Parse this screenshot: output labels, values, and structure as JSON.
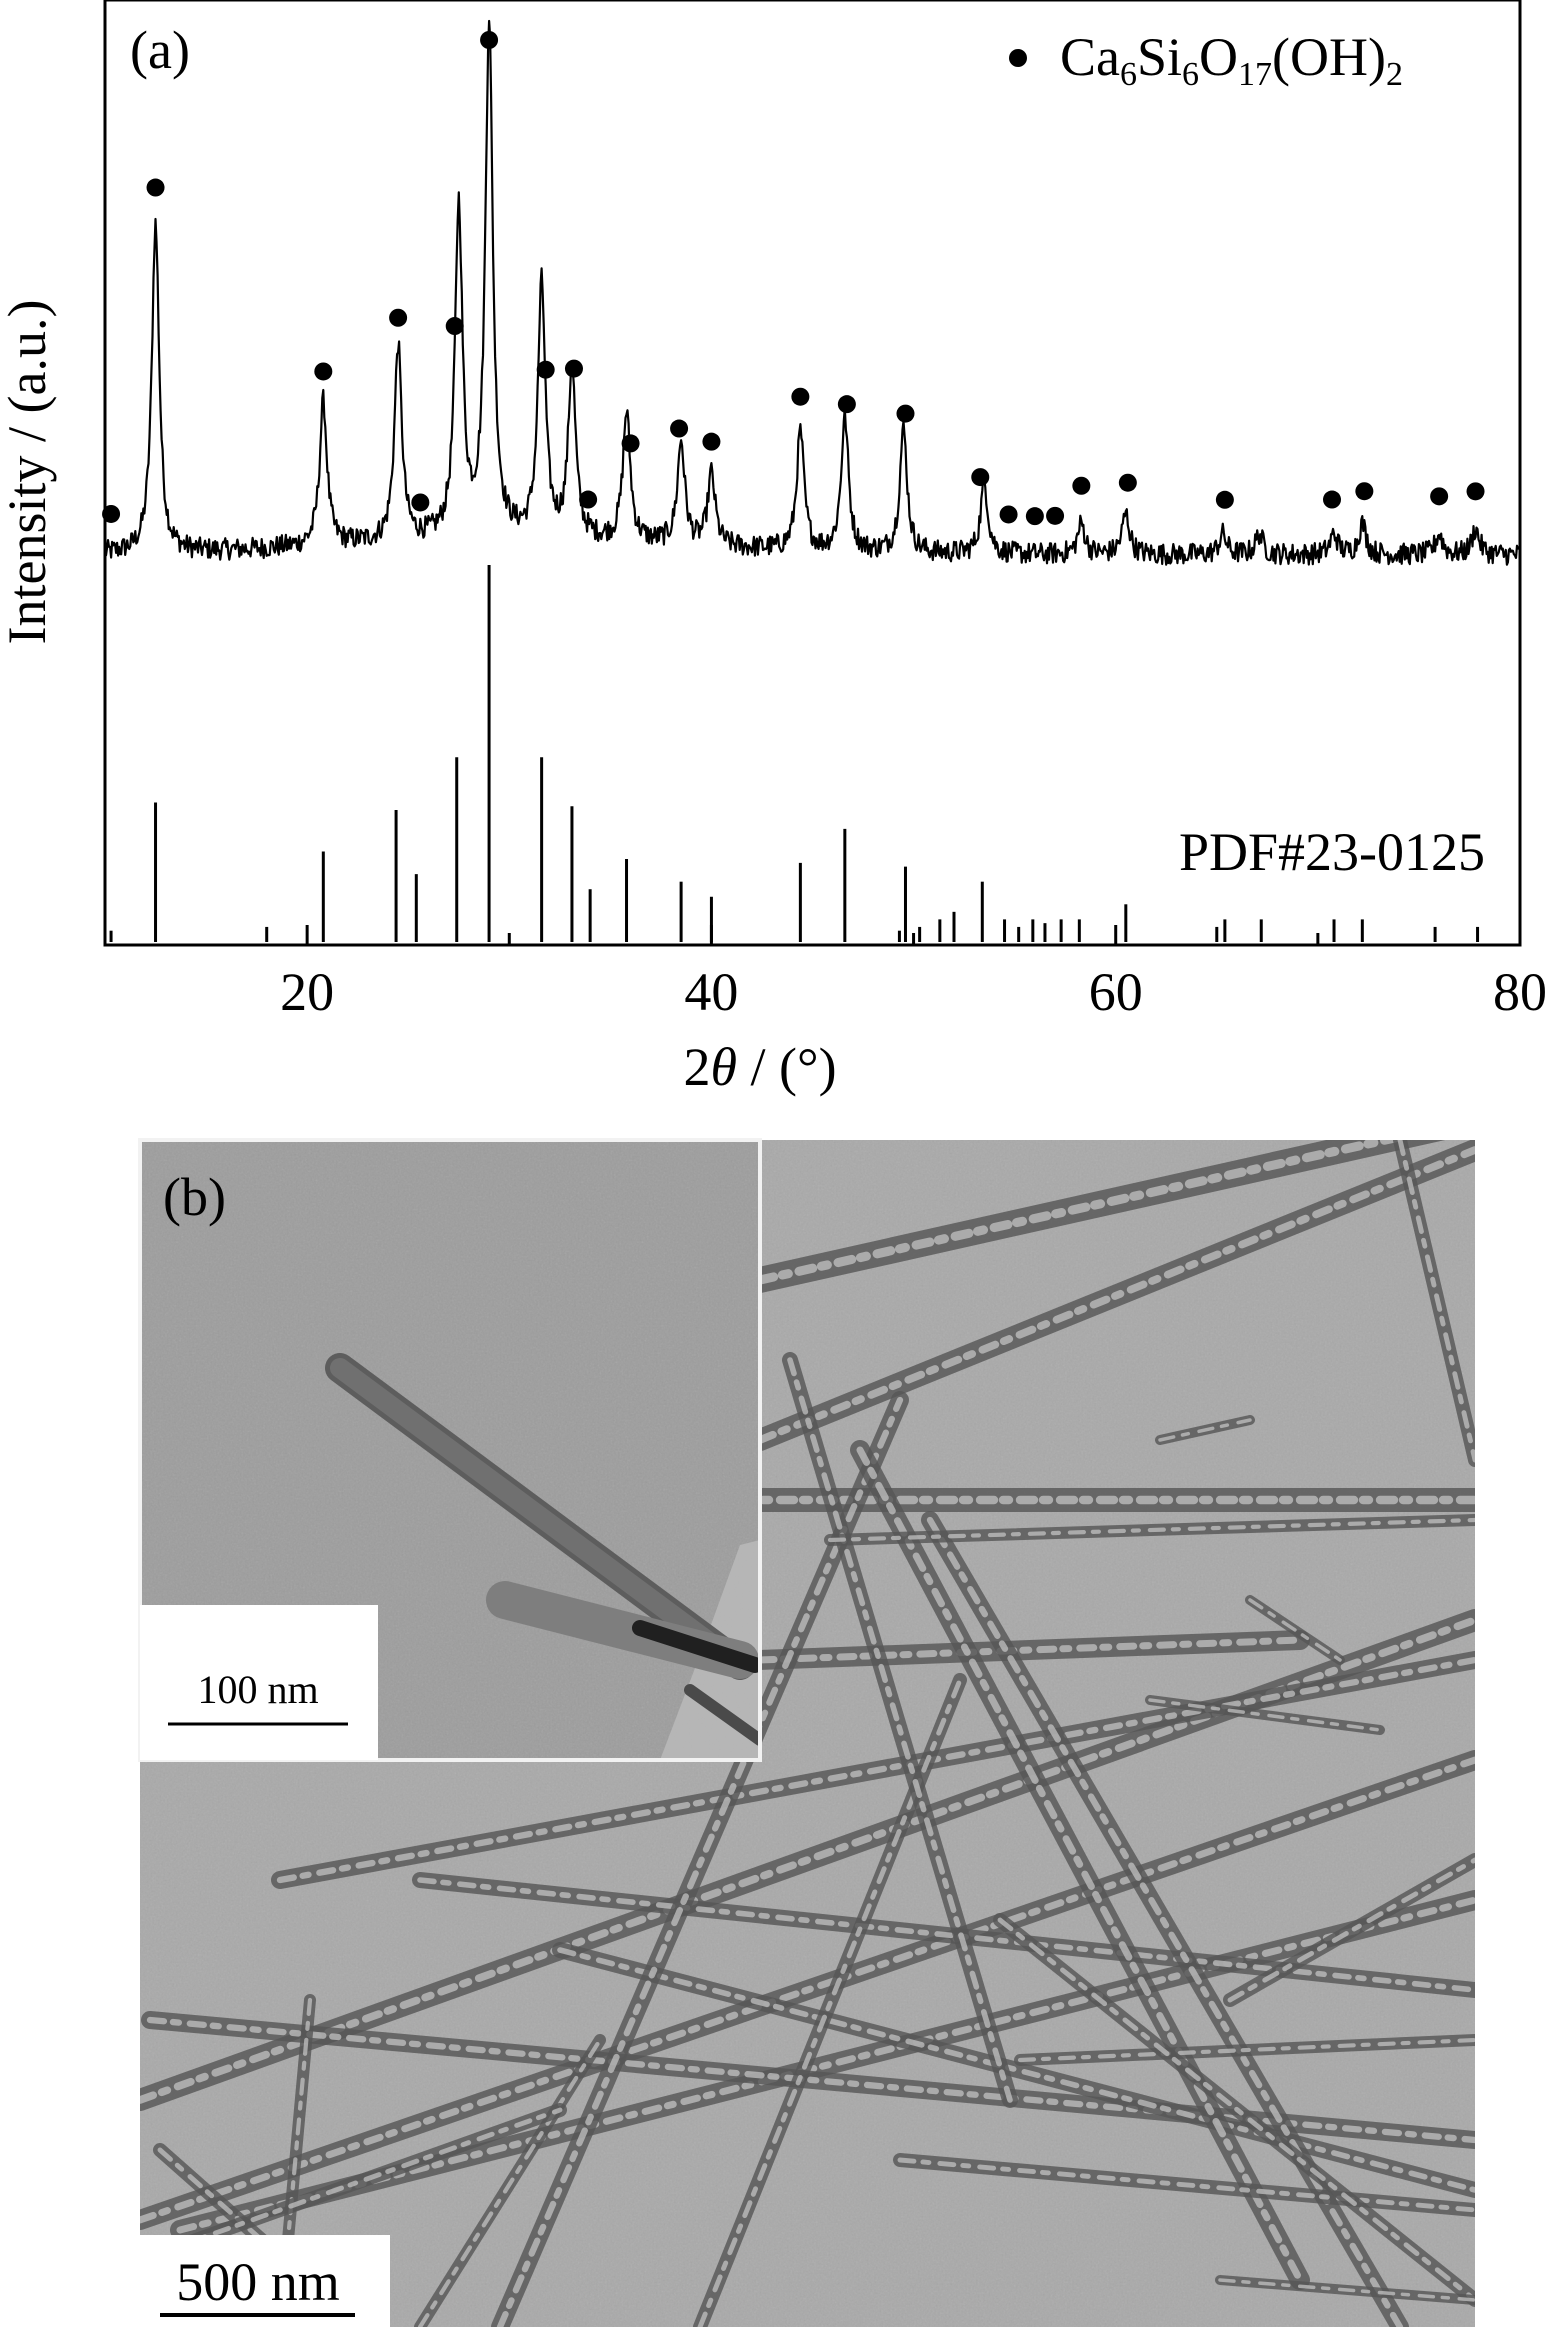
{
  "panel_a": {
    "label": "(a)",
    "ylabel": "Intensity / (a.u.)",
    "xlabel_prefix": "2",
    "xlabel_theta": "θ",
    "xlabel_suffix": " / (°)",
    "legend": {
      "marker": "●",
      "phase": "Ca",
      "sub1": "6",
      "mid1": "Si",
      "sub2": "6",
      "mid2": "O",
      "sub3": "17",
      "tail": "(OH)",
      "sub4": "2"
    },
    "reference_label": "PDF#23-0125"
  },
  "chart_data": {
    "type": "line",
    "xlabel": "2θ / (°)",
    "ylabel": "Intensity / (a.u.)",
    "xlim": [
      10,
      80
    ],
    "xticks": [
      "20",
      "40",
      "60",
      "80"
    ],
    "yticks": [],
    "grid": false,
    "legend_position": "top-right",
    "series": [
      {
        "name": "Ca6Si6O17(OH)2",
        "peaks": [
          {
            "x": 12.5,
            "y": 64
          },
          {
            "x": 20.8,
            "y": 28
          },
          {
            "x": 24.5,
            "y": 38
          },
          {
            "x": 27.5,
            "y": 64
          },
          {
            "x": 29.0,
            "y": 100
          },
          {
            "x": 31.6,
            "y": 49
          },
          {
            "x": 33.1,
            "y": 33
          },
          {
            "x": 35.8,
            "y": 25
          },
          {
            "x": 38.5,
            "y": 20
          },
          {
            "x": 40.0,
            "y": 14
          },
          {
            "x": 44.4,
            "y": 23
          },
          {
            "x": 46.6,
            "y": 26
          },
          {
            "x": 49.5,
            "y": 24
          },
          {
            "x": 53.5,
            "y": 14
          },
          {
            "x": 58.3,
            "y": 6
          },
          {
            "x": 60.5,
            "y": 8
          },
          {
            "x": 65.3,
            "y": 4
          },
          {
            "x": 67.1,
            "y": 4
          },
          {
            "x": 70.8,
            "y": 4
          },
          {
            "x": 72.2,
            "y": 6
          },
          {
            "x": 76.0,
            "y": 4
          },
          {
            "x": 77.8,
            "y": 5
          }
        ]
      },
      {
        "name": "PDF#23-0125",
        "type": "stick",
        "sticks": [
          {
            "x": 10.3,
            "y": 3
          },
          {
            "x": 12.5,
            "y": 37
          },
          {
            "x": 18.0,
            "y": 4
          },
          {
            "x": 20.8,
            "y": 24
          },
          {
            "x": 24.4,
            "y": 35
          },
          {
            "x": 25.4,
            "y": 18
          },
          {
            "x": 27.4,
            "y": 49
          },
          {
            "x": 29.0,
            "y": 100
          },
          {
            "x": 31.6,
            "y": 49
          },
          {
            "x": 33.1,
            "y": 36
          },
          {
            "x": 34.0,
            "y": 14
          },
          {
            "x": 35.8,
            "y": 22
          },
          {
            "x": 38.5,
            "y": 16
          },
          {
            "x": 40.0,
            "y": 12
          },
          {
            "x": 44.4,
            "y": 21
          },
          {
            "x": 46.6,
            "y": 30
          },
          {
            "x": 49.3,
            "y": 3
          },
          {
            "x": 49.6,
            "y": 20
          },
          {
            "x": 50.3,
            "y": 4
          },
          {
            "x": 51.3,
            "y": 6
          },
          {
            "x": 52.0,
            "y": 8
          },
          {
            "x": 53.4,
            "y": 16
          },
          {
            "x": 54.5,
            "y": 6
          },
          {
            "x": 55.2,
            "y": 4
          },
          {
            "x": 55.9,
            "y": 6
          },
          {
            "x": 56.5,
            "y": 5
          },
          {
            "x": 57.3,
            "y": 6
          },
          {
            "x": 58.2,
            "y": 6
          },
          {
            "x": 60.5,
            "y": 10
          },
          {
            "x": 65.0,
            "y": 4
          },
          {
            "x": 65.4,
            "y": 6
          },
          {
            "x": 67.2,
            "y": 6
          },
          {
            "x": 70.8,
            "y": 6
          },
          {
            "x": 72.2,
            "y": 6
          },
          {
            "x": 75.8,
            "y": 4
          },
          {
            "x": 77.9,
            "y": 4
          }
        ]
      }
    ],
    "markers": [
      10.3,
      12.5,
      20.8,
      24.5,
      25.6,
      27.3,
      29.0,
      31.8,
      33.2,
      33.9,
      36.0,
      38.4,
      40.0,
      44.4,
      46.7,
      49.6,
      53.3,
      54.7,
      56.0,
      57.0,
      58.3,
      60.6,
      65.4,
      70.7,
      72.3,
      76.0,
      77.8
    ]
  },
  "panel_b": {
    "label": "(b)",
    "main_scale_label": "500 nm",
    "inset_scale_label": "100 nm"
  }
}
